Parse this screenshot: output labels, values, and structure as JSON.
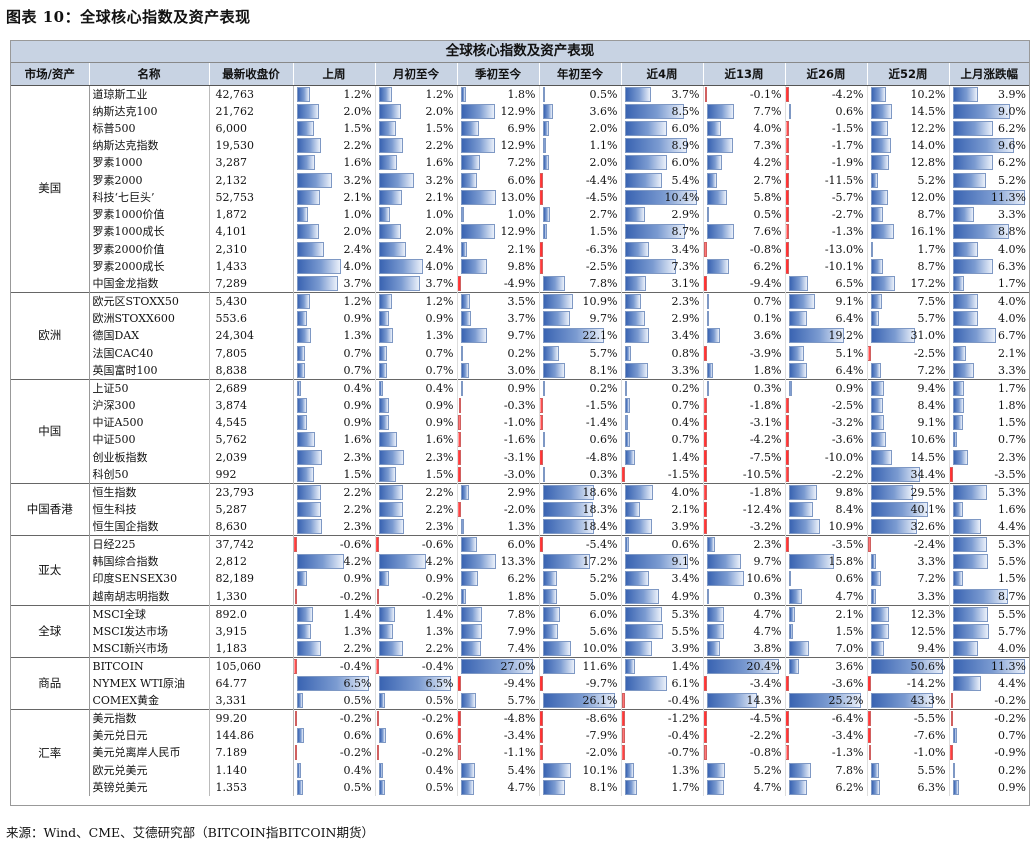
{
  "figure_title": "图表 10：全球核心指数及资产表现",
  "table_title": "全球核心指数及资产表现",
  "headers": [
    "市场/资产",
    "名称",
    "最新收盘价",
    "上周",
    "月初至今",
    "季初至今",
    "年初至今",
    "近4周",
    "近13周",
    "近26周",
    "近52周",
    "上月涨跌幅"
  ],
  "source": "来源：Wind、CME、艾德研究部（BITCOIN指BITCOIN期货）",
  "colors": {
    "header_bg": "#c8d3e3",
    "positive_bar": "#4a72bd",
    "negative_bar": "#ff2d2d"
  },
  "groups": [
    {
      "name": "美国",
      "rows": [
        {
          "name": "道琼斯工业",
          "price": "42,763",
          "values": [
            "1.2%",
            "1.2%",
            "1.8%",
            "0.5%",
            "3.7%",
            "-0.1%",
            "-4.2%",
            "10.2%",
            "3.9%"
          ]
        },
        {
          "name": "纳斯达克100",
          "price": "21,762",
          "values": [
            "2.0%",
            "2.0%",
            "12.9%",
            "3.6%",
            "8.5%",
            "7.7%",
            "0.6%",
            "14.5%",
            "9.0%"
          ]
        },
        {
          "name": "标普500",
          "price": "6,000",
          "values": [
            "1.5%",
            "1.5%",
            "6.9%",
            "2.0%",
            "6.0%",
            "4.0%",
            "-1.5%",
            "12.2%",
            "6.2%"
          ]
        },
        {
          "name": "纳斯达克指数",
          "price": "19,530",
          "values": [
            "2.2%",
            "2.2%",
            "12.9%",
            "1.1%",
            "8.9%",
            "7.3%",
            "-1.7%",
            "14.0%",
            "9.6%"
          ]
        },
        {
          "name": "罗素1000",
          "price": "3,287",
          "values": [
            "1.6%",
            "1.6%",
            "7.2%",
            "2.0%",
            "6.0%",
            "4.2%",
            "-1.9%",
            "12.8%",
            "6.2%"
          ]
        },
        {
          "name": "罗素2000",
          "price": "2,132",
          "values": [
            "3.2%",
            "3.2%",
            "6.0%",
            "-4.4%",
            "5.4%",
            "2.7%",
            "-11.5%",
            "5.2%",
            "5.2%"
          ]
        },
        {
          "name": "科技‘七巨头’",
          "price": "52,753",
          "values": [
            "2.1%",
            "2.1%",
            "13.0%",
            "-4.5%",
            "10.4%",
            "5.8%",
            "-5.7%",
            "12.0%",
            "11.3%"
          ]
        },
        {
          "name": "罗素1000价值",
          "price": "1,872",
          "values": [
            "1.0%",
            "1.0%",
            "1.0%",
            "2.7%",
            "2.9%",
            "0.5%",
            "-2.7%",
            "8.7%",
            "3.3%"
          ]
        },
        {
          "name": "罗素1000成长",
          "price": "4,101",
          "values": [
            "2.0%",
            "2.0%",
            "12.9%",
            "1.5%",
            "8.7%",
            "7.6%",
            "-1.3%",
            "16.1%",
            "8.8%"
          ]
        },
        {
          "name": "罗素2000价值",
          "price": "2,310",
          "values": [
            "2.4%",
            "2.4%",
            "2.1%",
            "-6.3%",
            "3.4%",
            "-0.8%",
            "-13.0%",
            "1.7%",
            "4.0%"
          ]
        },
        {
          "name": "罗素2000成长",
          "price": "1,433",
          "values": [
            "4.0%",
            "4.0%",
            "9.8%",
            "-2.5%",
            "7.3%",
            "6.2%",
            "-10.1%",
            "8.7%",
            "6.3%"
          ]
        },
        {
          "name": "中国金龙指数",
          "price": "7,289",
          "values": [
            "3.7%",
            "3.7%",
            "-4.9%",
            "7.8%",
            "3.1%",
            "-9.4%",
            "6.5%",
            "17.2%",
            "1.7%"
          ]
        }
      ]
    },
    {
      "name": "欧洲",
      "rows": [
        {
          "name": "欧元区STOXX50",
          "price": "5,430",
          "values": [
            "1.2%",
            "1.2%",
            "3.5%",
            "10.9%",
            "2.3%",
            "0.7%",
            "9.1%",
            "7.5%",
            "4.0%"
          ]
        },
        {
          "name": "欧洲STOXX600",
          "price": "553.6",
          "values": [
            "0.9%",
            "0.9%",
            "3.7%",
            "9.7%",
            "2.9%",
            "0.1%",
            "6.4%",
            "5.7%",
            "4.0%"
          ]
        },
        {
          "name": "德国DAX",
          "price": "24,304",
          "values": [
            "1.3%",
            "1.3%",
            "9.7%",
            "22.1%",
            "3.4%",
            "3.6%",
            "19.2%",
            "31.0%",
            "6.7%"
          ]
        },
        {
          "name": "法国CAC40",
          "price": "7,805",
          "values": [
            "0.7%",
            "0.7%",
            "0.2%",
            "5.7%",
            "0.8%",
            "-3.9%",
            "5.1%",
            "-2.5%",
            "2.1%"
          ]
        },
        {
          "name": "英国富时100",
          "price": "8,838",
          "values": [
            "0.7%",
            "0.7%",
            "3.0%",
            "8.1%",
            "3.3%",
            "1.8%",
            "6.4%",
            "7.2%",
            "3.3%"
          ]
        }
      ]
    },
    {
      "name": "中国",
      "rows": [
        {
          "name": "上证50",
          "price": "2,689",
          "values": [
            "0.4%",
            "0.4%",
            "0.9%",
            "0.2%",
            "0.2%",
            "0.3%",
            "0.9%",
            "9.4%",
            "1.7%"
          ]
        },
        {
          "name": "沪深300",
          "price": "3,874",
          "values": [
            "0.9%",
            "0.9%",
            "-0.3%",
            "-1.5%",
            "0.7%",
            "-1.8%",
            "-2.5%",
            "8.4%",
            "1.8%"
          ]
        },
        {
          "name": "中证A500",
          "price": "4,545",
          "values": [
            "0.9%",
            "0.9%",
            "-1.0%",
            "-1.4%",
            "0.4%",
            "-3.1%",
            "-3.2%",
            "9.1%",
            "1.5%"
          ]
        },
        {
          "name": "中证500",
          "price": "5,762",
          "values": [
            "1.6%",
            "1.6%",
            "-1.6%",
            "0.6%",
            "0.7%",
            "-4.2%",
            "-3.6%",
            "10.6%",
            "0.7%"
          ]
        },
        {
          "name": "创业板指数",
          "price": "2,039",
          "values": [
            "2.3%",
            "2.3%",
            "-3.1%",
            "-4.8%",
            "1.4%",
            "-7.5%",
            "-10.0%",
            "14.5%",
            "2.3%"
          ]
        },
        {
          "name": "科创50",
          "price": "992",
          "values": [
            "1.5%",
            "1.5%",
            "-3.0%",
            "0.3%",
            "-1.5%",
            "-10.5%",
            "-2.2%",
            "34.4%",
            "-3.5%"
          ]
        }
      ]
    },
    {
      "name": "中国香港",
      "rows": [
        {
          "name": "恒生指数",
          "price": "23,793",
          "values": [
            "2.2%",
            "2.2%",
            "2.9%",
            "18.6%",
            "4.0%",
            "-1.8%",
            "9.8%",
            "29.5%",
            "5.3%"
          ]
        },
        {
          "name": "恒生科技",
          "price": "5,287",
          "values": [
            "2.2%",
            "2.2%",
            "-2.0%",
            "18.3%",
            "2.1%",
            "-12.4%",
            "8.4%",
            "40.1%",
            "1.6%"
          ]
        },
        {
          "name": "恒生国企指数",
          "price": "8,630",
          "values": [
            "2.3%",
            "2.3%",
            "1.3%",
            "18.4%",
            "3.9%",
            "-3.2%",
            "10.9%",
            "32.6%",
            "4.4%"
          ]
        }
      ]
    },
    {
      "name": "亚太",
      "rows": [
        {
          "name": "日经225",
          "price": "37,742",
          "values": [
            "-0.6%",
            "-0.6%",
            "6.0%",
            "-5.4%",
            "0.6%",
            "2.3%",
            "-3.5%",
            "-2.4%",
            "5.3%"
          ]
        },
        {
          "name": "韩国综合指数",
          "price": "2,812",
          "values": [
            "4.2%",
            "4.2%",
            "13.3%",
            "17.2%",
            "9.1%",
            "9.7%",
            "15.8%",
            "3.3%",
            "5.5%"
          ]
        },
        {
          "name": "印度SENSEX30",
          "price": "82,189",
          "values": [
            "0.9%",
            "0.9%",
            "6.2%",
            "5.2%",
            "3.4%",
            "10.6%",
            "0.6%",
            "7.2%",
            "1.5%"
          ]
        },
        {
          "name": "越南胡志明指数",
          "price": "1,330",
          "values": [
            "-0.2%",
            "-0.2%",
            "1.8%",
            "5.0%",
            "4.9%",
            "0.3%",
            "4.7%",
            "3.3%",
            "8.7%"
          ]
        }
      ]
    },
    {
      "name": "全球",
      "rows": [
        {
          "name": "MSCI全球",
          "price": "892.0",
          "values": [
            "1.4%",
            "1.4%",
            "7.8%",
            "6.0%",
            "5.3%",
            "4.7%",
            "2.1%",
            "12.3%",
            "5.5%"
          ]
        },
        {
          "name": "MSCI发达市场",
          "price": "3,915",
          "values": [
            "1.3%",
            "1.3%",
            "7.9%",
            "5.6%",
            "5.5%",
            "4.7%",
            "1.5%",
            "12.5%",
            "5.7%"
          ]
        },
        {
          "name": "MSCI新兴市场",
          "price": "1,183",
          "values": [
            "2.2%",
            "2.2%",
            "7.4%",
            "10.0%",
            "3.9%",
            "3.8%",
            "7.0%",
            "9.4%",
            "4.0%"
          ]
        }
      ]
    },
    {
      "name": "商品",
      "rows": [
        {
          "name": "BITCOIN",
          "price": "105,060",
          "values": [
            "-0.4%",
            "-0.4%",
            "27.0%",
            "11.6%",
            "1.4%",
            "20.4%",
            "3.6%",
            "50.6%",
            "11.3%"
          ]
        },
        {
          "name": "NYMEX WTI原油",
          "price": "64.77",
          "values": [
            "6.5%",
            "6.5%",
            "-9.4%",
            "-9.7%",
            "6.1%",
            "-3.4%",
            "-3.6%",
            "-14.2%",
            "4.4%"
          ]
        },
        {
          "name": "COMEX黄金",
          "price": "3,331",
          "values": [
            "0.5%",
            "0.5%",
            "5.7%",
            "26.1%",
            "-0.4%",
            "14.3%",
            "25.2%",
            "43.3%",
            "-0.2%"
          ]
        }
      ]
    },
    {
      "name": "汇率",
      "rows": [
        {
          "name": "美元指数",
          "price": "99.20",
          "values": [
            "-0.2%",
            "-0.2%",
            "-4.8%",
            "-8.6%",
            "-1.2%",
            "-4.5%",
            "-6.4%",
            "-5.5%",
            "-0.2%"
          ]
        },
        {
          "name": "美元兑日元",
          "price": "144.86",
          "values": [
            "0.6%",
            "0.6%",
            "-3.4%",
            "-7.9%",
            "-0.4%",
            "-2.2%",
            "-3.4%",
            "-7.6%",
            "0.7%"
          ]
        },
        {
          "name": "美元兑离岸人民币",
          "price": "7.189",
          "values": [
            "-0.2%",
            "-0.2%",
            "-1.1%",
            "-2.0%",
            "-0.7%",
            "-0.8%",
            "-1.3%",
            "-1.0%",
            "-0.9%"
          ]
        },
        {
          "name": "欧元兑美元",
          "price": "1.140",
          "values": [
            "0.4%",
            "0.4%",
            "5.4%",
            "10.1%",
            "1.3%",
            "5.2%",
            "7.8%",
            "5.5%",
            "0.2%"
          ]
        },
        {
          "name": "英镑兑美元",
          "price": "1.353",
          "values": [
            "0.5%",
            "0.5%",
            "4.7%",
            "8.1%",
            "1.7%",
            "4.7%",
            "6.2%",
            "6.3%",
            "0.9%"
          ]
        }
      ]
    }
  ]
}
